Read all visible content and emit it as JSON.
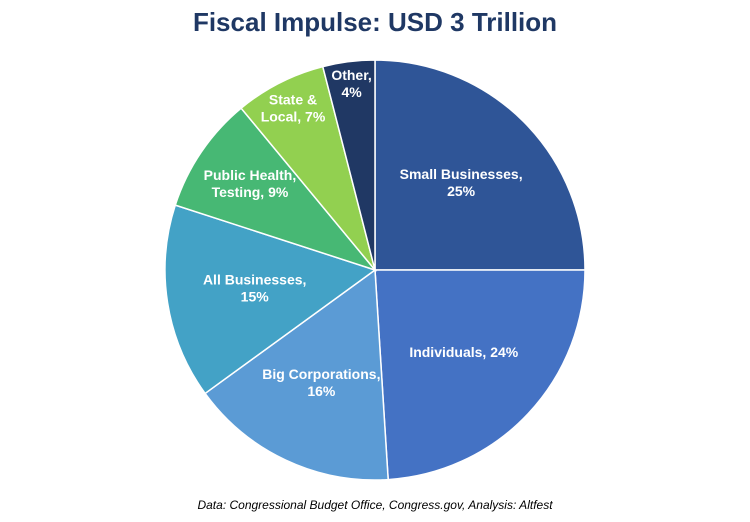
{
  "chart_data": {
    "type": "pie",
    "title": "Fiscal Impulse: USD 3 Trillion",
    "source": "Data: Congressional Budget Office, Congress.gov, Analysis: Altfest",
    "values": [
      25,
      24,
      16,
      15,
      9,
      7,
      4
    ],
    "value_labels": [
      [
        "Small Businesses,",
        "25%"
      ],
      [
        "Individuals, 24%"
      ],
      [
        "Big Corporations,",
        "16%"
      ],
      [
        "All Businesses,",
        "15%"
      ],
      [
        "Public Health,",
        "Testing, 9%"
      ],
      [
        "State &",
        "Local, 7%"
      ],
      [
        "Other,",
        "4%"
      ]
    ],
    "colors": [
      "#2f5597",
      "#4472c4",
      "#5b9bd5",
      "#43a2c6",
      "#47b874",
      "#92d050",
      "#203864"
    ]
  }
}
